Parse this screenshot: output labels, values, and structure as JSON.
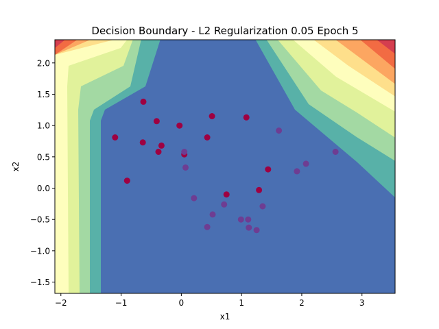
{
  "chart_data": {
    "type": "scatter",
    "title": "Decision Boundary - L2 Regularization 0.05 Epoch 5",
    "xlabel": "x1",
    "ylabel": "x2",
    "xlim": [
      -2.1,
      3.55
    ],
    "ylim": [
      -1.68,
      2.37
    ],
    "xticks": [
      "−2",
      "−1",
      "0",
      "1",
      "2",
      "3"
    ],
    "xtick_values": [
      -2,
      -1,
      0,
      1,
      2,
      3
    ],
    "yticks": [
      "−1.5",
      "−1.0",
      "−0.5",
      "0.0",
      "0.5",
      "1.0",
      "1.5",
      "2.0"
    ],
    "ytick_values": [
      -1.5,
      -1.0,
      -0.5,
      0.0,
      0.5,
      1.0,
      1.5,
      2.0
    ],
    "grid": false,
    "background": "filled decision contours (Spectral colormap)",
    "contour_colors": [
      "#4a6fb2",
      "#58b1a8",
      "#a3d9a3",
      "#e1f29b",
      "#fefebd",
      "#fedf8b",
      "#fca661",
      "#f26b43",
      "#d53e4f"
    ],
    "series": [
      {
        "color": "#9e0142",
        "points": [
          [
            -1.1,
            0.81
          ],
          [
            -0.9,
            0.12
          ],
          [
            -0.63,
            1.38
          ],
          [
            -0.64,
            0.73
          ],
          [
            -0.41,
            1.07
          ],
          [
            -0.38,
            0.58
          ],
          [
            -0.33,
            0.68
          ],
          [
            -0.03,
            1.0
          ],
          [
            0.05,
            0.54
          ],
          [
            0.43,
            0.81
          ],
          [
            0.51,
            1.15
          ],
          [
            1.08,
            1.13
          ],
          [
            0.75,
            -0.1
          ],
          [
            1.29,
            -0.03
          ],
          [
            1.44,
            0.3
          ]
        ]
      },
      {
        "color": "#6e3d92",
        "points": [
          [
            0.05,
            0.58
          ],
          [
            0.07,
            0.33
          ],
          [
            0.21,
            -0.16
          ],
          [
            0.52,
            -0.42
          ],
          [
            0.71,
            -0.26
          ],
          [
            0.43,
            -0.62
          ],
          [
            0.99,
            -0.5
          ],
          [
            1.11,
            -0.5
          ],
          [
            1.12,
            -0.63
          ],
          [
            1.25,
            -0.67
          ],
          [
            1.35,
            -0.29
          ],
          [
            1.62,
            0.92
          ],
          [
            1.92,
            0.27
          ],
          [
            2.07,
            0.39
          ],
          [
            2.56,
            0.58
          ]
        ]
      }
    ]
  }
}
